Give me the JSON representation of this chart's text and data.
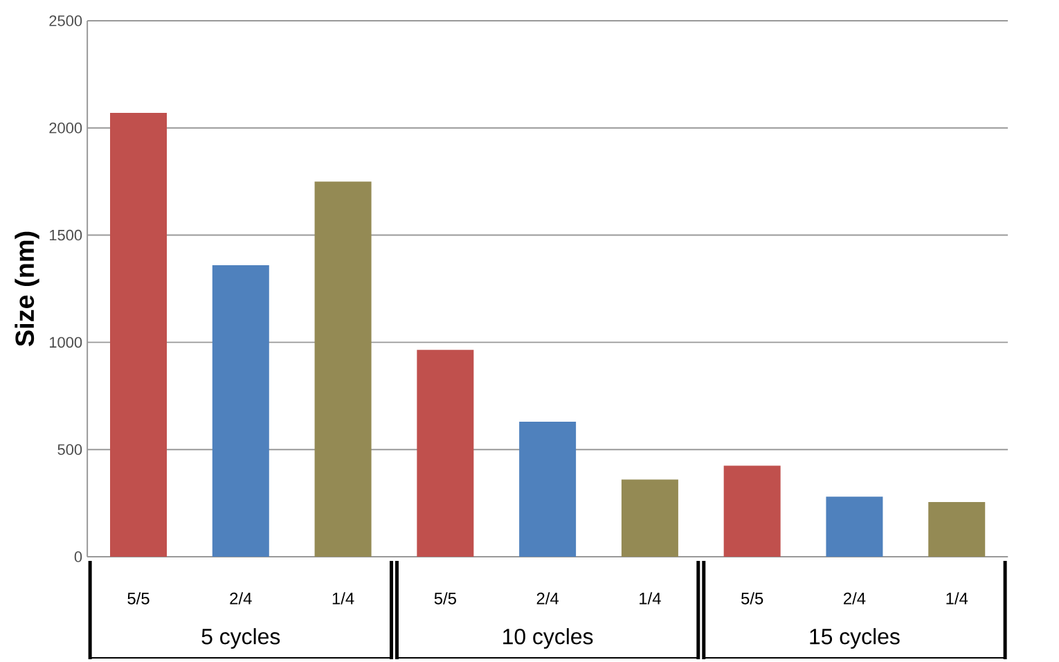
{
  "chart_data": {
    "type": "bar",
    "ylabel": "Size (nm)",
    "categories": [
      "5/5",
      "2/4",
      "1/4",
      "5/5",
      "2/4",
      "1/4",
      "5/5",
      "2/4",
      "1/4"
    ],
    "values": [
      2070,
      1360,
      1750,
      965,
      630,
      360,
      425,
      280,
      255
    ],
    "colors": [
      "#c0504d",
      "#4f81bd",
      "#948a54",
      "#c0504d",
      "#4f81bd",
      "#948a54",
      "#c0504d",
      "#4f81bd",
      "#948a54"
    ],
    "annotations": [
      "5 cycles",
      "10 cycles",
      "15 cycles"
    ],
    "ylim": [
      0,
      2500
    ],
    "yticks": [
      0,
      500,
      1000,
      1500,
      2000,
      2500
    ],
    "grid": "y"
  }
}
